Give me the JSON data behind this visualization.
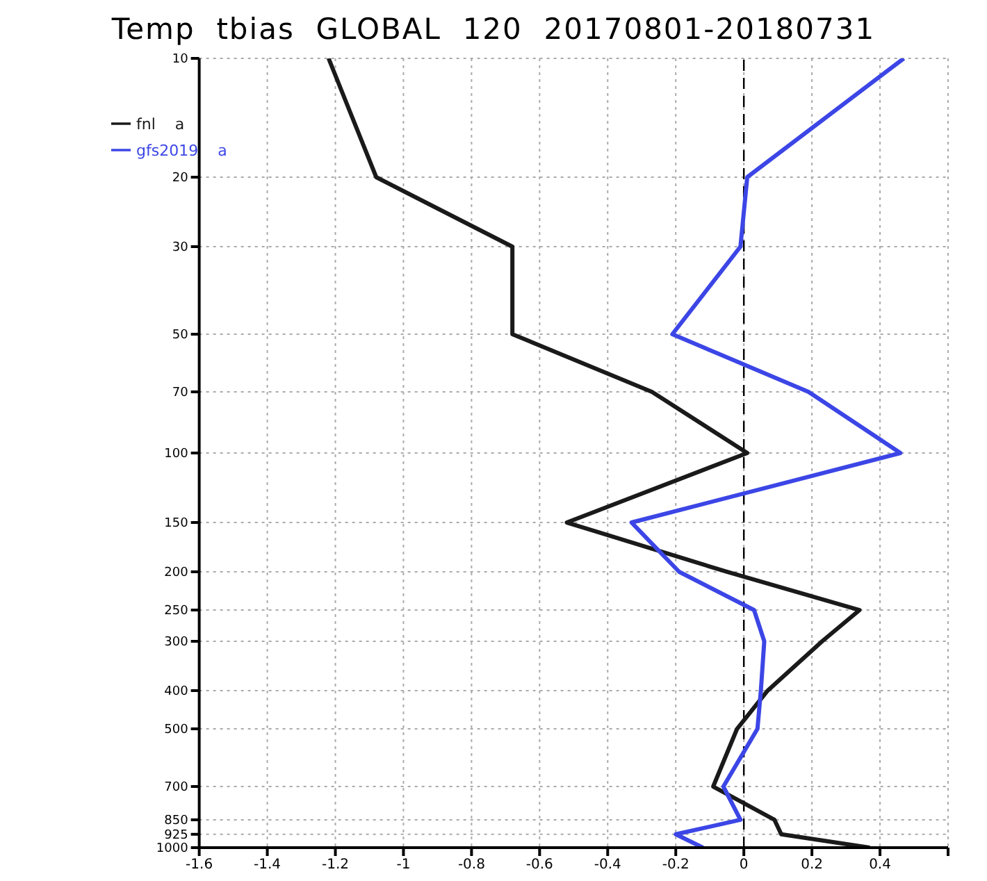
{
  "chart_data": {
    "type": "line",
    "title": "Temp  tbias  GLOBAL  120  20170801-20180731",
    "orientation": "horizontal",
    "log": "y",
    "x": [
      10,
      20,
      30,
      50,
      70,
      100,
      150,
      200,
      250,
      300,
      400,
      500,
      700,
      850,
      925,
      1000
    ],
    "series": [
      {
        "name": "fnl    a",
        "color": "#1a1a1a",
        "values": [
          -1.22,
          -1.08,
          -0.68,
          -0.68,
          -0.27,
          0.01,
          -0.52,
          -0.05,
          0.34,
          0.23,
          0.07,
          -0.02,
          -0.09,
          0.09,
          0.11,
          0.37
        ]
      },
      {
        "name": "gfs2019    a",
        "color": "#3c46e6",
        "values": [
          0.47,
          0.01,
          -0.01,
          -0.21,
          0.19,
          0.46,
          -0.33,
          -0.19,
          0.03,
          0.06,
          0.05,
          0.04,
          -0.06,
          -0.01,
          -0.2,
          -0.12
        ]
      }
    ],
    "xlim": [
      -1.6,
      0.6
    ],
    "xticks": [
      -1.6,
      -1.4,
      -1.2,
      -1,
      -0.8,
      -0.6,
      -0.4,
      -0.2,
      0,
      0.2,
      0.4,
      {
        "value": 0.6,
        "label": null
      }
    ],
    "ylim": [
      1000,
      10
    ],
    "yticks": [
      10,
      20,
      30,
      50,
      70,
      100,
      150,
      200,
      250,
      300,
      400,
      500,
      700,
      850,
      925,
      1000
    ],
    "ref_lines": [
      {
        "axis": "x",
        "value": 0,
        "color": "#000000",
        "line_style": "dashed"
      }
    ],
    "grid": true,
    "legend": "top left",
    "marker": "none",
    "line_style": "solid"
  }
}
